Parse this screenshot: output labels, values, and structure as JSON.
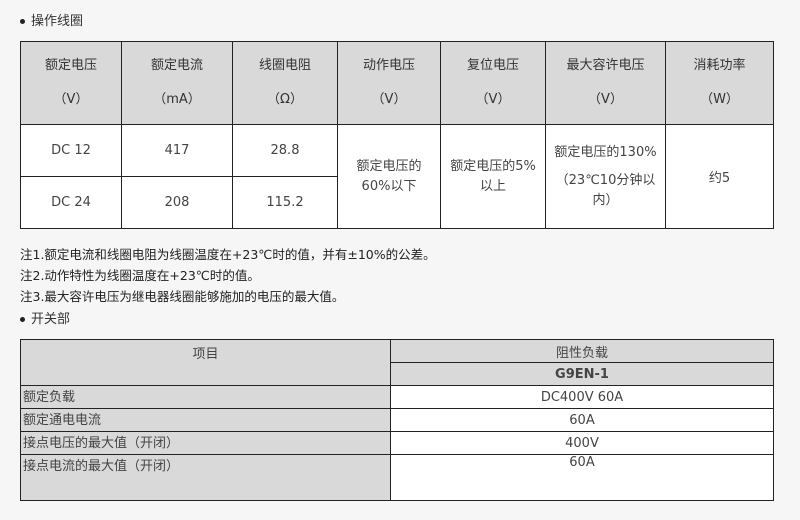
{
  "section1": {
    "title": "操作线圈"
  },
  "coil_table": {
    "headers": [
      {
        "name": "额定电压",
        "unit": "（V）"
      },
      {
        "name": "额定电流",
        "unit": "（mA）"
      },
      {
        "name": "线圈电阻",
        "unit": "（Ω）"
      },
      {
        "name": "动作电压",
        "unit": "（V）"
      },
      {
        "name": "复位电压",
        "unit": "（V）"
      },
      {
        "name": "最大容许电压",
        "unit": "（V）"
      },
      {
        "name": "消耗功率",
        "unit": "（W）"
      }
    ],
    "rows": [
      {
        "voltage": "DC 12",
        "current": "417",
        "resistance": "28.8"
      },
      {
        "voltage": "DC 24",
        "current": "208",
        "resistance": "115.2"
      }
    ],
    "pickup_voltage": [
      "额定电压的",
      "60%以下"
    ],
    "release_voltage": [
      "额定电压的5%",
      "以上"
    ],
    "max_voltage": [
      "额定电压的130%",
      "（23℃10分钟以",
      "内）"
    ],
    "power": "约5"
  },
  "notes": [
    "注1.额定电流和线圈电阻为线圈温度在+23℃时的值，并有±10%的公差。",
    "注2.动作特性为线圈温度在+23℃时的值。",
    "注3.最大容许电压为继电器线圈能够施加的电压的最大值。"
  ],
  "section2": {
    "title": "开关部"
  },
  "switch_table": {
    "header_item": "项目",
    "header_load": "阻性负载",
    "model": "G9EN-1",
    "rows": [
      {
        "item": "额定负载",
        "value": "DC400V 60A"
      },
      {
        "item": "额定通电电流",
        "value": "60A"
      },
      {
        "item": "接点电压的最大值（开闭）",
        "value": "400V"
      },
      {
        "item": "接点电流的最大值（开闭）",
        "value": "60A"
      }
    ]
  }
}
